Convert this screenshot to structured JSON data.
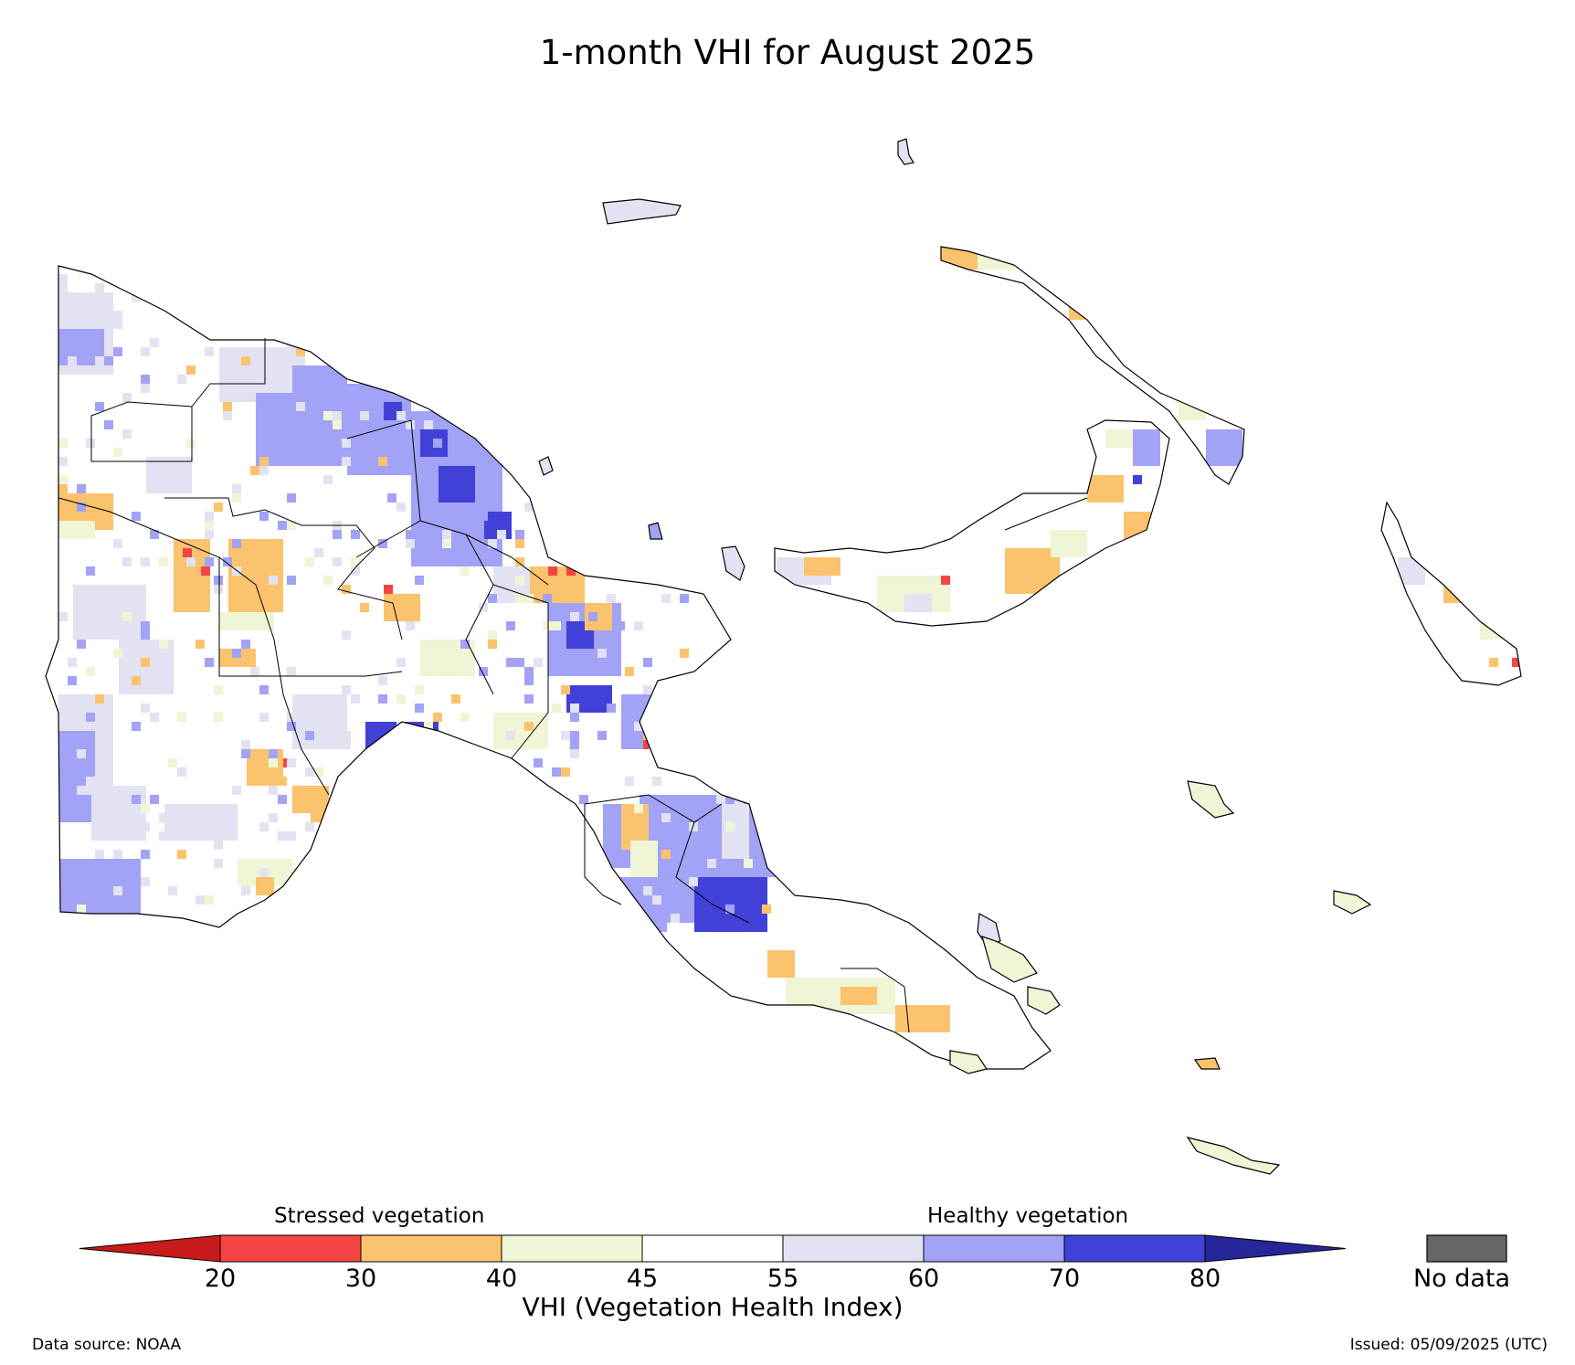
{
  "title": "1-month VHI for August 2025",
  "legend": {
    "stressed_label": "Stressed vegetation",
    "healthy_label": "Healthy vegetation",
    "axis_label": "VHI (Vegetation Health Index)",
    "ticks": [
      "20",
      "30",
      "40",
      "45",
      "55",
      "60",
      "70",
      "80"
    ],
    "classes": [
      {
        "range": "<20",
        "color": "#c81a1a"
      },
      {
        "range": "20-30",
        "color": "#f44444"
      },
      {
        "range": "30-40",
        "color": "#fbc36d"
      },
      {
        "range": "40-45",
        "color": "#eff5d5"
      },
      {
        "range": "45-55",
        "color": "#ffffff"
      },
      {
        "range": "55-60",
        "color": "#e3e2f2"
      },
      {
        "range": "60-70",
        "color": "#a2a2f6"
      },
      {
        "range": "70-80",
        "color": "#4141d8"
      },
      {
        "range": ">80",
        "color": "#26269a"
      }
    ],
    "nodata_label": "No data",
    "nodata_color": "#666666"
  },
  "footer": {
    "source": "Data source: NOAA",
    "issued": "Issued: 05/09/2025 (UTC)"
  }
}
